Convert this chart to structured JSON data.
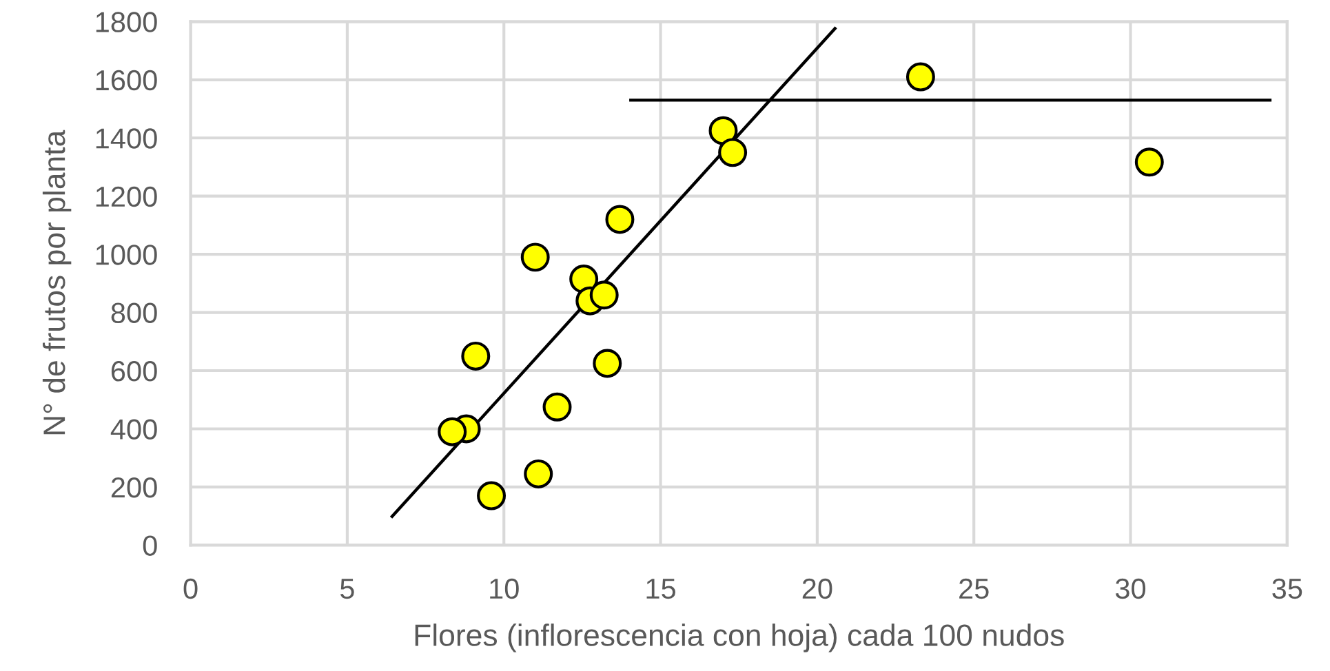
{
  "chart_data": {
    "type": "scatter",
    "xlabel": "Flores (inflorescencia con hoja) cada 100 nudos",
    "ylabel": "N° de frutos por planta",
    "xlim": [
      0,
      35
    ],
    "ylim": [
      0,
      1800
    ],
    "xticks": [
      0,
      5,
      10,
      15,
      20,
      25,
      30,
      35
    ],
    "yticks": [
      0,
      200,
      400,
      600,
      800,
      1000,
      1200,
      1400,
      1600,
      1800
    ],
    "grid": true,
    "marker": "circle",
    "series": [
      {
        "color": "#ffff00",
        "x": [
          11.0,
          12.55,
          12.75,
          13.2,
          13.7,
          9.1,
          13.3,
          8.8,
          8.35,
          11.7,
          11.1,
          9.6,
          17.0,
          17.3,
          23.3,
          30.6
        ],
        "values": [
          990,
          915,
          840,
          860,
          1120,
          650,
          625,
          400,
          390,
          475,
          245,
          170,
          1425,
          1350,
          1610,
          1317
        ]
      },
      {
        "type": "line",
        "color": "#000000",
        "marker": "none",
        "x": [
          6.4,
          20.6
        ],
        "values": [
          95,
          1780
        ]
      },
      {
        "type": "line",
        "color": "#000000",
        "marker": "none",
        "x": [
          14,
          34.5
        ],
        "values": [
          1530,
          1530
        ]
      }
    ]
  }
}
